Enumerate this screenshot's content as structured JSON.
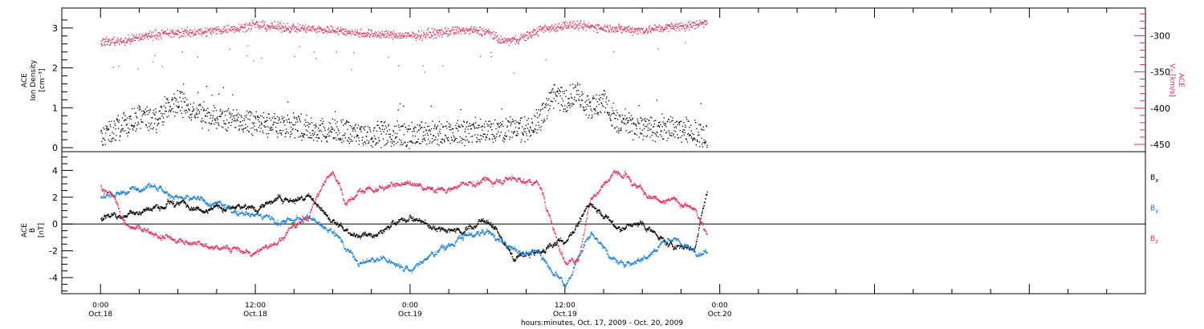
{
  "chart_data": [
    {
      "type": "scatter",
      "panel": "top",
      "ylabel_left": [
        "ACE",
        "Ion Density",
        "[cm⁻³]"
      ],
      "ylabel_right": [
        "ACE",
        "Vₓ [km/s]"
      ],
      "xlim_hours": [
        -3,
        81
      ],
      "left_axis": {
        "ylim": [
          -0.1,
          3.5
        ],
        "ticks": [
          0,
          1,
          2,
          3
        ]
      },
      "right_axis": {
        "ylim": [
          -460,
          -262
        ],
        "ticks": [
          -300,
          -350,
          -400,
          -450
        ],
        "color": "#e0335d"
      },
      "series": [
        {
          "axis": "left",
          "color": "#000000",
          "keypoints": {
            "x": [
              0,
              1,
              2,
              3,
              4,
              5,
              6,
              8,
              10,
              12,
              14,
              16,
              18,
              20,
              22,
              24,
              26,
              28,
              30,
              33,
              34,
              35,
              36,
              37,
              38,
              39,
              40,
              42,
              44,
              46,
              47
            ],
            "y": [
              0.25,
              0.45,
              0.6,
              0.8,
              0.7,
              0.95,
              1.2,
              0.8,
              0.7,
              0.6,
              0.55,
              0.5,
              0.4,
              0.35,
              0.35,
              0.35,
              0.35,
              0.4,
              0.45,
              0.5,
              0.7,
              1.3,
              1.2,
              1.4,
              1.0,
              1.2,
              0.6,
              0.5,
              0.5,
              0.4,
              0.3
            ]
          }
        },
        {
          "axis": "right",
          "color": "#e0335d",
          "keypoints": {
            "x": [
              0,
              2,
              4,
              6,
              8,
              10,
              12,
              14,
              16,
              18,
              20,
              22,
              24,
              26,
              28,
              30,
              31,
              32,
              33,
              34,
              36,
              38,
              40,
              42,
              44,
              46,
              47
            ],
            "y": [
              -308,
              -306,
              -298,
              -296,
              -294,
              -290,
              -285,
              -288,
              -290,
              -292,
              -296,
              -298,
              -300,
              -296,
              -292,
              -294,
              -307,
              -306,
              -300,
              -292,
              -285,
              -287,
              -290,
              -292,
              -288,
              -285,
              -280
            ]
          }
        }
      ]
    },
    {
      "type": "scatter",
      "panel": "bottom",
      "ylabel_left": [
        "ACE",
        "B",
        "[nT]"
      ],
      "xlim_hours": [
        -3,
        81
      ],
      "ylim": [
        -5.2,
        5.4
      ],
      "yticks": [
        4,
        2,
        0,
        -2,
        -4
      ],
      "zero_line": true,
      "xticks": [
        {
          "hours": 0,
          "label_time": "0:00",
          "label_date": "Oct.18"
        },
        {
          "hours": 12,
          "label_time": "12:00",
          "label_date": "Oct.18"
        },
        {
          "hours": 24,
          "label_time": "0:00",
          "label_date": "Oct.19"
        },
        {
          "hours": 36,
          "label_time": "12:00",
          "label_date": "Oct.19"
        },
        {
          "hours": 48,
          "label_time": "0:00",
          "label_date": "Oct.20"
        }
      ],
      "legend": [
        {
          "name": "B",
          "sub": "x",
          "color": "#000000"
        },
        {
          "name": "B",
          "sub": "y",
          "color": "#1a7fd6"
        },
        {
          "name": "B",
          "sub": "z",
          "color": "#e0335d"
        }
      ],
      "series": [
        {
          "name": "Bx",
          "color": "#000000",
          "keypoints": {
            "x": [
              0,
              2,
              4,
              6,
              8,
              10,
              12,
              14,
              16,
              18,
              20,
              22,
              24,
              26,
              28,
              30,
              32,
              34,
              36,
              38,
              40,
              42,
              44,
              46,
              47
            ],
            "y": [
              0.5,
              0.8,
              1.2,
              1.6,
              1.4,
              1.1,
              1.3,
              1.8,
              2.0,
              0.2,
              -1.0,
              -0.3,
              0.5,
              -0.2,
              -0.5,
              0.5,
              -2.5,
              -2.0,
              -1.2,
              1.5,
              -0.3,
              0.0,
              -1.5,
              -1.8,
              2.5
            ]
          }
        },
        {
          "name": "By",
          "color": "#1a7fd6",
          "keypoints": {
            "x": [
              0,
              2,
              4,
              6,
              8,
              10,
              12,
              14,
              16,
              18,
              20,
              22,
              24,
              26,
              28,
              30,
              32,
              34,
              36,
              38,
              40,
              42,
              44,
              46,
              47
            ],
            "y": [
              2.0,
              2.5,
              3.0,
              2.0,
              1.6,
              1.2,
              0.8,
              0.2,
              0.5,
              -0.5,
              -2.8,
              -2.5,
              -3.5,
              -2.0,
              -1.0,
              -0.5,
              -2.0,
              -2.2,
              -4.5,
              -0.5,
              -3.0,
              -2.5,
              -1.0,
              -2.0,
              -2.2
            ]
          }
        },
        {
          "name": "Bz",
          "color": "#e0335d",
          "keypoints": {
            "x": [
              0,
              1,
              2,
              4,
              6,
              8,
              10,
              12,
              14,
              16,
              17,
              18,
              19,
              20,
              22,
              24,
              26,
              28,
              30,
              32,
              34,
              36,
              37,
              38,
              40,
              42,
              44,
              46,
              47
            ],
            "y": [
              2.8,
              2.2,
              0.0,
              -0.8,
              -1.2,
              -1.6,
              -1.8,
              -2.2,
              -1.0,
              0.5,
              2.5,
              4.0,
              1.5,
              2.5,
              2.8,
              3.0,
              2.5,
              3.0,
              3.2,
              3.5,
              3.0,
              -3.0,
              -2.5,
              2.0,
              4.0,
              2.5,
              2.0,
              1.0,
              -0.8
            ]
          }
        }
      ]
    }
  ],
  "xlabel": "hours:minutes, Oct. 17, 2009 - Oct. 20, 2009"
}
